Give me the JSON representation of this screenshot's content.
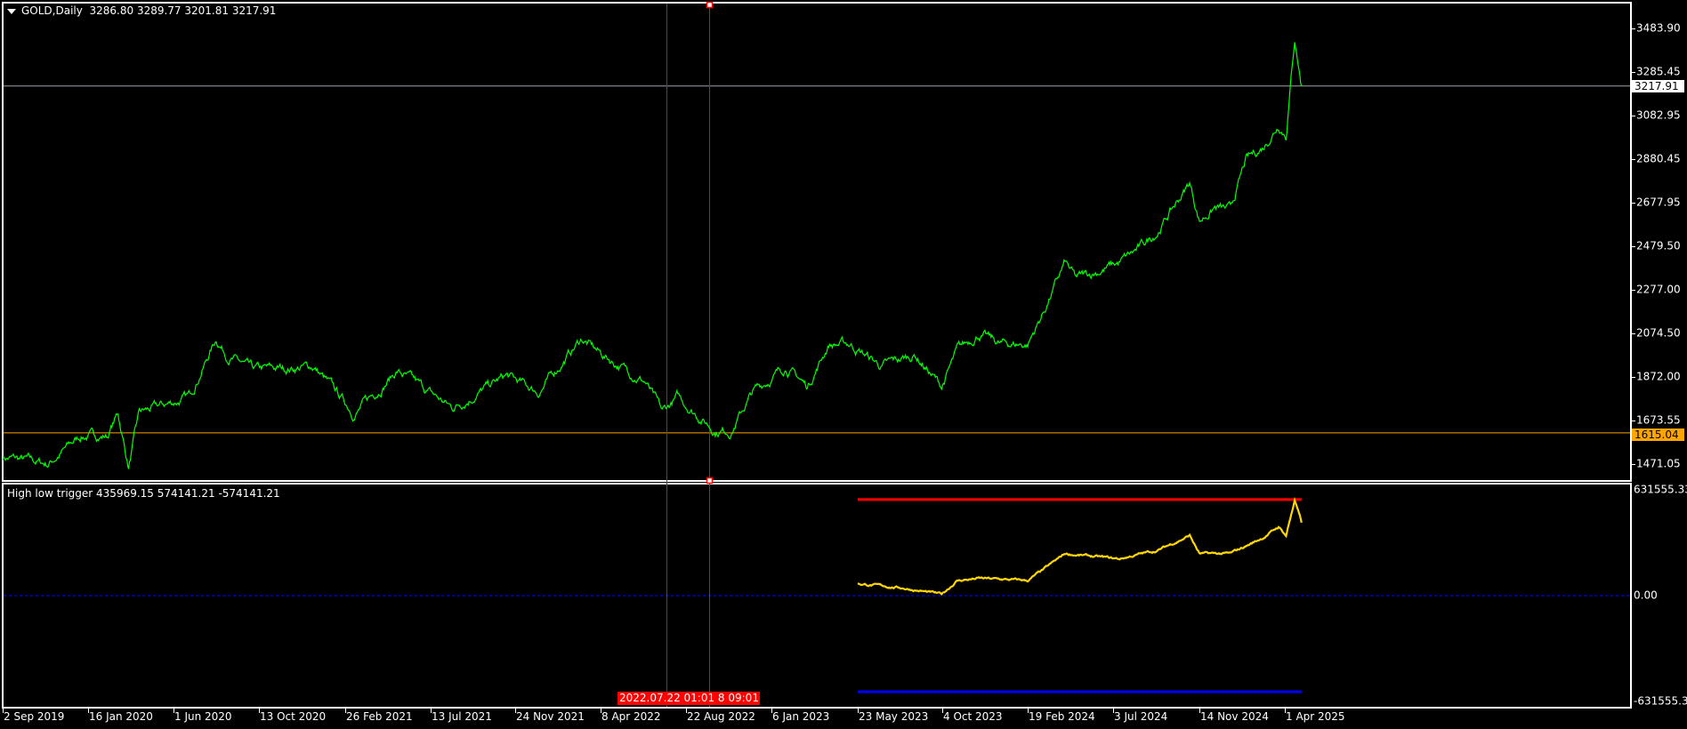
{
  "header": {
    "symbol_timeframe": "GOLD,Daily",
    "ohlc": "3286.80 3289.77 3201.81 3217.91"
  },
  "indicator": {
    "label": "High low trigger 435969.15 574141.21 -574141.21",
    "upper_level": 574141.21,
    "lower_level": -574141.21,
    "current": 435969.15
  },
  "price_axis": {
    "ticks": [
      "3483.90",
      "3285.45",
      "3082.95",
      "2880.45",
      "2677.95",
      "2479.50",
      "2277.00",
      "2074.50",
      "1872.00",
      "1673.55",
      "1471.05"
    ]
  },
  "indicator_axis": {
    "ticks": [
      "631555.33",
      "0.00",
      "-631555.33"
    ]
  },
  "price_tags": {
    "current": "3217.91",
    "hline": "1615.04"
  },
  "time_axis": {
    "ticks": [
      "2 Sep 2019",
      "16 Jan 2020",
      "1 Jun 2020",
      "13 Oct 2020",
      "26 Feb 2021",
      "13 Jul 2021",
      "24 Nov 2021",
      "8 Apr 2022",
      "22 Aug 2022",
      "6 Jan 2023",
      "23 May 2023",
      "4 Oct 2023",
      "19 Feb 2024",
      "3 Jul 2024",
      "14 Nov 2024",
      "1 Apr 2025"
    ],
    "tick_dates": [
      "2019-09-02",
      "2020-01-16",
      "2020-06-01",
      "2020-10-13",
      "2021-02-26",
      "2021-07-13",
      "2021-11-24",
      "2022-04-08",
      "2022-08-22",
      "2023-01-06",
      "2023-05-23",
      "2023-10-04",
      "2024-02-19",
      "2024-07-03",
      "2024-11-14",
      "2025-04-01"
    ],
    "vline_label": "2022.07.22 01:01  8 09:01"
  },
  "colors": {
    "price_line": "#00ff00",
    "indicator_line": "#ffd700",
    "upper": "#ff0000",
    "lower": "#0000ff",
    "zero": "#0000ff",
    "hline": "#ffa500",
    "vline": "#ff0000",
    "current_line": "#a0a0a8"
  },
  "chart_data": [
    {
      "type": "line",
      "title": "GOLD,Daily",
      "ylim": [
        1400,
        3560
      ],
      "x": [
        "2019-09-02",
        "2019-11-13",
        "2020-01-05",
        "2020-02-16",
        "2020-03-04",
        "2020-03-21",
        "2020-04-07",
        "2020-06-25",
        "2020-08-07",
        "2020-08-24",
        "2020-10-03",
        "2021-01-07",
        "2021-03-13",
        "2021-05-20",
        "2021-08-16",
        "2021-11-10",
        "2021-12-31",
        "2022-03-09",
        "2022-04-10",
        "2022-06-18",
        "2022-07-15",
        "2022-08-09",
        "2022-10-08",
        "2022-11-03",
        "2022-12-07",
        "2023-01-29",
        "2023-03-04",
        "2023-04-07",
        "2023-05-11",
        "2023-06-30",
        "2023-08-22",
        "2023-10-03",
        "2023-10-28",
        "2023-12-02",
        "2024-01-05",
        "2024-02-19",
        "2024-03-15",
        "2024-04-18",
        "2024-05-05",
        "2024-07-12",
        "2024-08-16",
        "2024-09-10",
        "2024-10-30",
        "2024-11-14",
        "2024-12-09",
        "2025-01-03",
        "2025-01-28",
        "2025-02-25",
        "2025-03-22",
        "2025-04-03",
        "2025-04-17",
        "2025-04-28"
      ],
      "y": [
        1504,
        1471,
        1602,
        1602,
        1705,
        1455,
        1705,
        1779,
        2050,
        1976,
        1902,
        1922,
        1705,
        1902,
        1730,
        1877,
        1803,
        2050,
        1976,
        1853,
        1705,
        1779,
        1627,
        1627,
        1803,
        1922,
        1828,
        2025,
        2025,
        1922,
        1976,
        1828,
        1990,
        2075,
        2025,
        2025,
        2173,
        2399,
        2325,
        2399,
        2473,
        2547,
        2769,
        2596,
        2657,
        2640,
        2872,
        2935,
        3044,
        3000,
        3443,
        3217.91
      ],
      "hlines": [
        3217.91,
        1615.04
      ],
      "vlines": [
        "2022-07-22",
        "2022-08-22"
      ]
    },
    {
      "type": "line",
      "title": "High low trigger",
      "ylim": [
        -631555.33,
        631555.33
      ],
      "x": [
        "2023-05-23",
        "2023-08-05",
        "2023-10-03",
        "2023-10-28",
        "2023-12-02",
        "2024-02-19",
        "2024-03-15",
        "2024-04-18",
        "2024-07-12",
        "2024-08-16",
        "2024-09-10",
        "2024-10-30",
        "2024-11-14",
        "2025-01-03",
        "2025-02-25",
        "2025-03-22",
        "2025-04-03",
        "2025-04-17",
        "2025-04-28"
      ],
      "y": [
        70600,
        44900,
        6400,
        89800,
        102700,
        89800,
        154000,
        250200,
        218100,
        250200,
        269500,
        359300,
        250200,
        250200,
        346500,
        410600,
        359300,
        571000,
        435969.15
      ],
      "levels": [
        574141.21,
        0,
        -574141.21
      ]
    }
  ]
}
